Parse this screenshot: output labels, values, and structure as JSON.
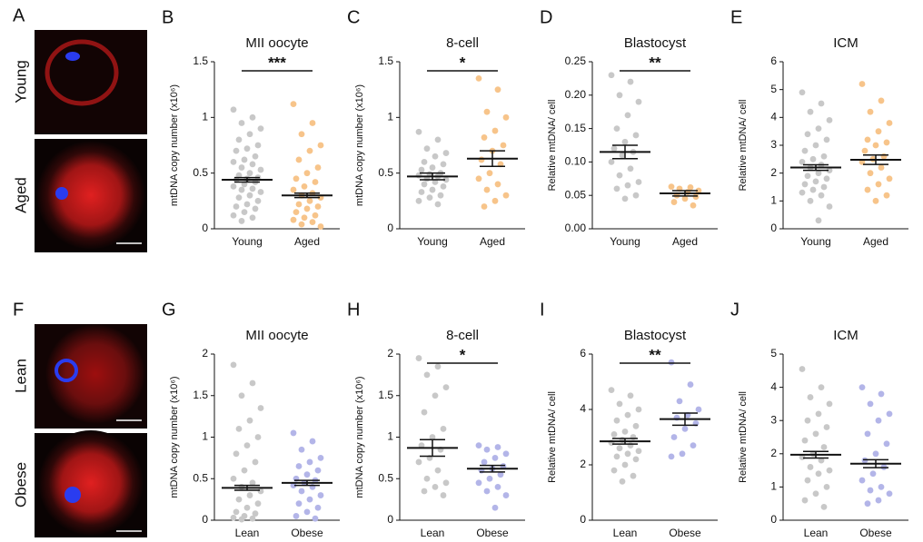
{
  "images": [
    {
      "label": "A",
      "rows": [
        "Young",
        "Aged"
      ]
    },
    {
      "label": "F",
      "rows": [
        "Lean",
        "Obese"
      ]
    }
  ],
  "chart_data": [
    {
      "type": "dotplot",
      "label": "B",
      "title": "MII oocyte",
      "y_label": "mtDNA copy number (x10⁶)",
      "categories": [
        "Young",
        "Aged"
      ],
      "groups": [
        {
          "color": "#c8c8c8",
          "mean": 0.44,
          "sem": 0.02,
          "values": [
            1.07,
            1.0,
            0.95,
            0.9,
            0.85,
            0.8,
            0.75,
            0.72,
            0.7,
            0.65,
            0.62,
            0.6,
            0.58,
            0.55,
            0.53,
            0.5,
            0.48,
            0.46,
            0.45,
            0.44,
            0.42,
            0.4,
            0.38,
            0.36,
            0.35,
            0.33,
            0.3,
            0.28,
            0.25,
            0.22,
            0.2,
            0.18,
            0.15,
            0.12,
            0.1,
            0.07
          ]
        },
        {
          "color": "#f7c48a",
          "mean": 0.3,
          "sem": 0.02,
          "values": [
            1.12,
            0.95,
            0.85,
            0.75,
            0.7,
            0.62,
            0.55,
            0.5,
            0.45,
            0.42,
            0.38,
            0.35,
            0.32,
            0.3,
            0.28,
            0.25,
            0.22,
            0.2,
            0.18,
            0.15,
            0.12,
            0.1,
            0.08,
            0.06,
            0.04,
            0.02
          ]
        }
      ],
      "ylim": [
        0,
        1.5
      ],
      "yticks": [
        0,
        0.5,
        1,
        1.5
      ],
      "significance": "***"
    },
    {
      "type": "dotplot",
      "label": "C",
      "title": "8-cell",
      "y_label": "mtDNA copy number (x10⁶)",
      "categories": [
        "Young",
        "Aged"
      ],
      "groups": [
        {
          "color": "#c8c8c8",
          "mean": 0.47,
          "sem": 0.03,
          "values": [
            0.87,
            0.8,
            0.72,
            0.68,
            0.65,
            0.6,
            0.58,
            0.55,
            0.53,
            0.5,
            0.49,
            0.48,
            0.47,
            0.45,
            0.44,
            0.42,
            0.4,
            0.38,
            0.35,
            0.33,
            0.3,
            0.28,
            0.25,
            0.22
          ]
        },
        {
          "color": "#f7c48a",
          "mean": 0.63,
          "sem": 0.07,
          "values": [
            1.35,
            1.25,
            1.05,
            1.0,
            0.88,
            0.82,
            0.75,
            0.7,
            0.62,
            0.58,
            0.5,
            0.45,
            0.4,
            0.35,
            0.3,
            0.25,
            0.2
          ]
        }
      ],
      "ylim": [
        0,
        1.5
      ],
      "yticks": [
        0,
        0.5,
        1,
        1.5
      ],
      "significance": "*"
    },
    {
      "type": "dotplot",
      "label": "D",
      "title": "Blastocyst",
      "y_label": "Relative mtDNA/ cell",
      "categories": [
        "Young",
        "Aged"
      ],
      "groups": [
        {
          "color": "#c8c8c8",
          "mean": 0.115,
          "sem": 0.01,
          "values": [
            0.23,
            0.22,
            0.2,
            0.19,
            0.17,
            0.15,
            0.14,
            0.13,
            0.12,
            0.115,
            0.11,
            0.1,
            0.09,
            0.08,
            0.07,
            0.065,
            0.06,
            0.05,
            0.045
          ]
        },
        {
          "color": "#f7c48a",
          "mean": 0.053,
          "sem": 0.004,
          "values": [
            0.063,
            0.062,
            0.06,
            0.057,
            0.055,
            0.05,
            0.048,
            0.045,
            0.04,
            0.035
          ]
        }
      ],
      "ylim": [
        0,
        0.25
      ],
      "yticks": [
        {
          "value": 0,
          "label": "0.00"
        },
        0.05,
        {
          "value": 0.1,
          "label": "0.10"
        },
        0.15,
        {
          "value": 0.2,
          "label": "0.20"
        },
        0.25
      ],
      "significance": "**"
    },
    {
      "type": "dotplot",
      "label": "E",
      "title": "ICM",
      "y_label": "Relative mtDNA/ cell",
      "categories": [
        "Young",
        "Aged"
      ],
      "groups": [
        {
          "color": "#c8c8c8",
          "mean": 2.2,
          "sem": 0.1,
          "values": [
            4.9,
            4.5,
            4.2,
            3.9,
            3.6,
            3.4,
            3.2,
            3.0,
            2.8,
            2.6,
            2.5,
            2.4,
            2.3,
            2.2,
            2.1,
            2.0,
            1.9,
            1.8,
            1.7,
            1.6,
            1.5,
            1.4,
            1.3,
            1.2,
            1.0,
            0.8,
            0.3
          ]
        },
        {
          "color": "#f7c48a",
          "mean": 2.48,
          "sem": 0.17,
          "values": [
            5.2,
            4.6,
            4.2,
            3.8,
            3.5,
            3.2,
            3.1,
            3.0,
            2.8,
            2.6,
            2.5,
            2.4,
            2.2,
            2.0,
            1.8,
            1.6,
            1.4,
            1.2,
            1.0
          ]
        }
      ],
      "ylim": [
        0,
        6
      ],
      "yticks": [
        0,
        1,
        2,
        3,
        4,
        5,
        6
      ]
    },
    {
      "type": "dotplot",
      "label": "G",
      "title": "MII oocyte",
      "y_label": "mtDNA copy number (x10⁶)",
      "categories": [
        "Lean",
        "Obese"
      ],
      "groups": [
        {
          "color": "#c8c8c8",
          "mean": 0.39,
          "sem": 0.03,
          "values": [
            1.87,
            1.65,
            1.5,
            1.35,
            1.2,
            1.1,
            1.0,
            0.9,
            0.8,
            0.7,
            0.6,
            0.5,
            0.45,
            0.4,
            0.35,
            0.3,
            0.25,
            0.2,
            0.15,
            0.1,
            0.08,
            0.05,
            0.03,
            0.02,
            0.01
          ]
        },
        {
          "color": "#b3b5e8",
          "mean": 0.45,
          "sem": 0.03,
          "values": [
            1.05,
            0.95,
            0.85,
            0.75,
            0.7,
            0.65,
            0.6,
            0.55,
            0.5,
            0.48,
            0.45,
            0.42,
            0.4,
            0.35,
            0.3,
            0.25,
            0.2,
            0.15,
            0.1,
            0.05,
            0.02
          ]
        }
      ],
      "ylim": [
        0,
        2
      ],
      "yticks": [
        0,
        0.5,
        1,
        1.5,
        2
      ]
    },
    {
      "type": "dotplot",
      "label": "H",
      "title": "8-cell",
      "y_label": "mtDNA copy number (x10⁶)",
      "categories": [
        "Lean",
        "Obese"
      ],
      "groups": [
        {
          "color": "#c8c8c8",
          "mean": 0.87,
          "sem": 0.1,
          "values": [
            1.95,
            1.85,
            1.75,
            1.6,
            1.5,
            1.3,
            1.1,
            1.0,
            0.9,
            0.85,
            0.75,
            0.7,
            0.6,
            0.5,
            0.45,
            0.4,
            0.35,
            0.3
          ]
        },
        {
          "color": "#b3b5e8",
          "mean": 0.62,
          "sem": 0.04,
          "values": [
            0.9,
            0.88,
            0.85,
            0.8,
            0.75,
            0.7,
            0.65,
            0.62,
            0.6,
            0.55,
            0.5,
            0.45,
            0.4,
            0.35,
            0.3,
            0.15
          ]
        }
      ],
      "ylim": [
        0,
        2
      ],
      "yticks": [
        0,
        0.5,
        1,
        1.5,
        2
      ],
      "significance": "*"
    },
    {
      "type": "dotplot",
      "label": "I",
      "title": "Blastocyst",
      "y_label": "Relative mtDNA/ cell",
      "categories": [
        "Lean",
        "Obese"
      ],
      "groups": [
        {
          "color": "#c8c8c8",
          "mean": 2.85,
          "sem": 0.1,
          "values": [
            4.7,
            4.5,
            4.2,
            4.0,
            3.8,
            3.6,
            3.4,
            3.2,
            3.1,
            3.0,
            2.9,
            2.8,
            2.7,
            2.6,
            2.5,
            2.4,
            2.3,
            2.2,
            2.0,
            1.8,
            1.6,
            1.4
          ]
        },
        {
          "color": "#b3b5e8",
          "mean": 3.65,
          "sem": 0.22,
          "values": [
            5.7,
            4.9,
            4.3,
            4.0,
            3.8,
            3.7,
            3.5,
            3.3,
            3.0,
            2.7,
            2.4,
            2.3
          ]
        }
      ],
      "ylim": [
        0,
        6
      ],
      "yticks": [
        0,
        2,
        4,
        6
      ],
      "significance": "**"
    },
    {
      "type": "dotplot",
      "label": "J",
      "title": "ICM",
      "y_label": "Relative mtDNA/ cell",
      "categories": [
        "Lean",
        "Obese"
      ],
      "groups": [
        {
          "color": "#c8c8c8",
          "mean": 1.97,
          "sem": 0.1,
          "values": [
            4.55,
            4.0,
            3.7,
            3.5,
            3.2,
            3.0,
            2.8,
            2.6,
            2.4,
            2.2,
            2.0,
            1.9,
            1.8,
            1.6,
            1.5,
            1.4,
            1.2,
            1.0,
            0.8,
            0.6,
            0.4
          ]
        },
        {
          "color": "#b3b5e8",
          "mean": 1.7,
          "sem": 0.12,
          "values": [
            4.0,
            3.8,
            3.5,
            3.2,
            3.0,
            2.6,
            2.3,
            2.0,
            1.8,
            1.6,
            1.4,
            1.2,
            1.0,
            0.9,
            0.8,
            0.6,
            0.5
          ]
        }
      ],
      "ylim": [
        0,
        5
      ],
      "yticks": [
        0,
        1,
        2,
        3,
        4,
        5
      ]
    }
  ]
}
